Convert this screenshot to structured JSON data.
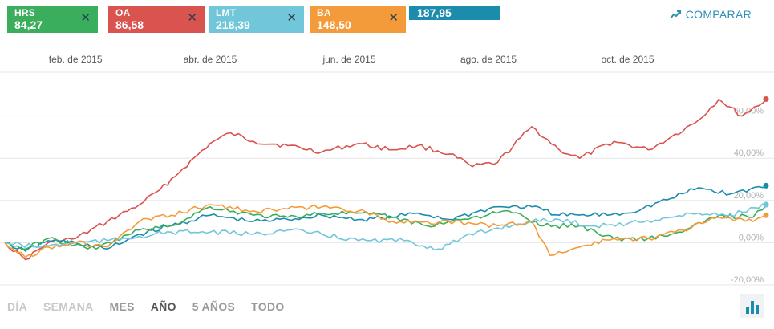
{
  "chips": [
    {
      "symbol": "HRS",
      "value": "84,27",
      "color": "#3aae5c",
      "close": "✕"
    },
    {
      "symbol": "OA",
      "value": "86,58",
      "color": "#d9534f",
      "close": "✕"
    },
    {
      "symbol": "LMT",
      "value": "218,39",
      "color": "#72c6d9",
      "close": "✕"
    },
    {
      "symbol": "BA",
      "value": "148,50",
      "color": "#f39b3a",
      "close": "✕"
    }
  ],
  "price_box": {
    "value": "187,95",
    "color": "#1b8cab"
  },
  "compare": {
    "label": "COMPARAR",
    "icon": "trend-up-icon",
    "color": "#2f8fb5"
  },
  "periods": [
    {
      "label": "DÍA",
      "active": false
    },
    {
      "label": "SEMANA",
      "active": false
    },
    {
      "label": "MES",
      "active": false
    },
    {
      "label": "AÑO",
      "active": true
    },
    {
      "label": "5 AÑOS",
      "active": false
    },
    {
      "label": "TODO",
      "active": false
    }
  ],
  "chart_toggle_icon": "bar-chart-icon",
  "chart_data": {
    "type": "line",
    "x_ticks": [
      "feb. de 2015",
      "abr. de 2015",
      "jun. de 2015",
      "ago. de 2015",
      "oct. de 2015"
    ],
    "x_range": [
      "2015-01-01",
      "2015-12-01"
    ],
    "y_ticks": [
      "60,00%",
      "40,00%",
      "20,00%",
      "0,00%",
      "-20,00%"
    ],
    "y_tick_values": [
      60,
      40,
      20,
      0,
      -20
    ],
    "ylim": [
      -20,
      80
    ],
    "grid": true,
    "series": [
      {
        "name": "OA",
        "color": "#d9534f",
        "ymax": 80,
        "points": [
          [
            "2015-01-01",
            0
          ],
          [
            "2015-01-10",
            -8
          ],
          [
            "2015-01-20",
            0
          ],
          [
            "2015-02-01",
            2
          ],
          [
            "2015-02-15",
            10
          ],
          [
            "2015-03-01",
            18
          ],
          [
            "2015-03-10",
            25
          ],
          [
            "2015-03-20",
            35
          ],
          [
            "2015-04-01",
            47
          ],
          [
            "2015-04-10",
            52
          ],
          [
            "2015-04-20",
            48
          ],
          [
            "2015-05-05",
            46
          ],
          [
            "2015-05-20",
            43
          ],
          [
            "2015-06-05",
            47
          ],
          [
            "2015-06-20",
            44
          ],
          [
            "2015-07-01",
            46
          ],
          [
            "2015-07-15",
            42
          ],
          [
            "2015-07-25",
            36
          ],
          [
            "2015-08-05",
            38
          ],
          [
            "2015-08-20",
            55
          ],
          [
            "2015-09-01",
            44
          ],
          [
            "2015-09-10",
            40
          ],
          [
            "2015-09-25",
            48
          ],
          [
            "2015-10-10",
            44
          ],
          [
            "2015-10-20",
            50
          ],
          [
            "2015-11-01",
            58
          ],
          [
            "2015-11-10",
            68
          ],
          [
            "2015-11-20",
            60
          ],
          [
            "2015-12-01",
            68
          ]
        ]
      },
      {
        "name": "",
        "color": "#1b8cab",
        "ymax": 30,
        "points": [
          [
            "2015-01-01",
            0
          ],
          [
            "2015-01-10",
            -4
          ],
          [
            "2015-01-20",
            1
          ],
          [
            "2015-02-01",
            0
          ],
          [
            "2015-02-15",
            -3
          ],
          [
            "2015-03-01",
            4
          ],
          [
            "2015-03-15",
            8
          ],
          [
            "2015-04-01",
            13
          ],
          [
            "2015-04-20",
            10
          ],
          [
            "2015-05-05",
            11
          ],
          [
            "2015-05-20",
            13
          ],
          [
            "2015-06-05",
            11
          ],
          [
            "2015-06-20",
            12
          ],
          [
            "2015-07-01",
            14
          ],
          [
            "2015-07-15",
            11
          ],
          [
            "2015-07-25",
            14
          ],
          [
            "2015-08-05",
            17
          ],
          [
            "2015-08-20",
            17
          ],
          [
            "2015-09-01",
            13
          ],
          [
            "2015-09-15",
            13
          ],
          [
            "2015-10-01",
            14
          ],
          [
            "2015-10-20",
            21
          ],
          [
            "2015-11-01",
            26
          ],
          [
            "2015-11-15",
            23
          ],
          [
            "2015-12-01",
            27
          ]
        ]
      },
      {
        "name": "HRS",
        "color": "#3aae5c",
        "ymax": 20,
        "points": [
          [
            "2015-01-01",
            0
          ],
          [
            "2015-01-10",
            -3
          ],
          [
            "2015-01-20",
            2
          ],
          [
            "2015-02-01",
            -1
          ],
          [
            "2015-02-10",
            -3
          ],
          [
            "2015-03-01",
            6
          ],
          [
            "2015-03-15",
            8
          ],
          [
            "2015-04-01",
            17
          ],
          [
            "2015-04-20",
            13
          ],
          [
            "2015-05-05",
            12
          ],
          [
            "2015-05-20",
            14
          ],
          [
            "2015-06-05",
            14
          ],
          [
            "2015-06-20",
            12
          ],
          [
            "2015-07-05",
            8
          ],
          [
            "2015-07-25",
            12
          ],
          [
            "2015-08-10",
            15
          ],
          [
            "2015-08-25",
            8
          ],
          [
            "2015-09-10",
            8
          ],
          [
            "2015-09-25",
            2
          ],
          [
            "2015-10-10",
            2
          ],
          [
            "2015-10-25",
            5
          ],
          [
            "2015-11-10",
            13
          ],
          [
            "2015-11-25",
            12
          ],
          [
            "2015-12-01",
            18
          ]
        ]
      },
      {
        "name": "LMT",
        "color": "#72c6d9",
        "ymax": 20,
        "points": [
          [
            "2015-01-01",
            0
          ],
          [
            "2015-01-15",
            -2
          ],
          [
            "2015-02-01",
            0
          ],
          [
            "2015-02-15",
            1
          ],
          [
            "2015-03-01",
            3
          ],
          [
            "2015-03-15",
            5
          ],
          [
            "2015-04-01",
            5
          ],
          [
            "2015-04-20",
            4
          ],
          [
            "2015-05-05",
            6
          ],
          [
            "2015-05-20",
            4
          ],
          [
            "2015-06-05",
            1
          ],
          [
            "2015-06-25",
            1
          ],
          [
            "2015-07-10",
            -3
          ],
          [
            "2015-07-20",
            2
          ],
          [
            "2015-08-05",
            7
          ],
          [
            "2015-08-20",
            10
          ],
          [
            "2015-09-01",
            11
          ],
          [
            "2015-09-15",
            8
          ],
          [
            "2015-10-01",
            9
          ],
          [
            "2015-10-20",
            12
          ],
          [
            "2015-11-01",
            14
          ],
          [
            "2015-11-15",
            13
          ],
          [
            "2015-12-01",
            18
          ]
        ]
      },
      {
        "name": "BA",
        "color": "#f39b3a",
        "ymax": 20,
        "points": [
          [
            "2015-01-01",
            0
          ],
          [
            "2015-01-10",
            -7
          ],
          [
            "2015-01-20",
            -2
          ],
          [
            "2015-02-01",
            0
          ],
          [
            "2015-02-15",
            -2
          ],
          [
            "2015-03-01",
            10
          ],
          [
            "2015-03-15",
            13
          ],
          [
            "2015-04-01",
            18
          ],
          [
            "2015-04-20",
            15
          ],
          [
            "2015-05-05",
            16
          ],
          [
            "2015-05-20",
            17
          ],
          [
            "2015-06-05",
            15
          ],
          [
            "2015-06-20",
            10
          ],
          [
            "2015-07-05",
            10
          ],
          [
            "2015-07-25",
            9
          ],
          [
            "2015-08-05",
            8
          ],
          [
            "2015-08-20",
            10
          ],
          [
            "2015-08-28",
            -6
          ],
          [
            "2015-09-10",
            -2
          ],
          [
            "2015-09-25",
            2
          ],
          [
            "2015-10-10",
            2
          ],
          [
            "2015-10-25",
            6
          ],
          [
            "2015-11-10",
            12
          ],
          [
            "2015-11-25",
            10
          ],
          [
            "2015-12-01",
            13
          ]
        ]
      }
    ]
  }
}
